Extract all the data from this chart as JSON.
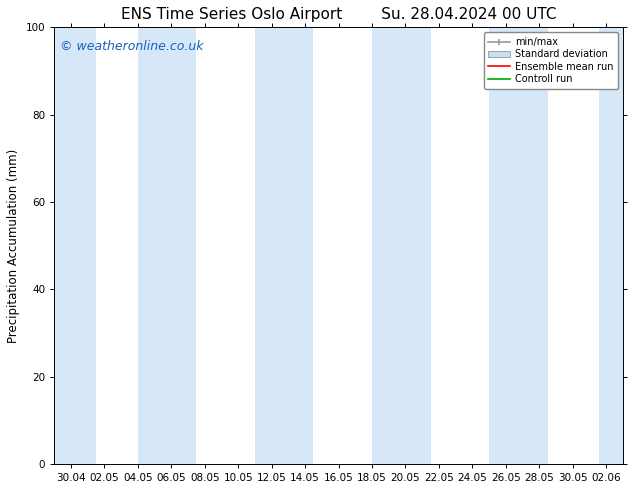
{
  "title_left": "ENS Time Series Oslo Airport",
  "title_right": "Su. 28.04.2024 00 UTC",
  "ylabel": "Precipitation Accumulation (mm)",
  "ylim": [
    0,
    100
  ],
  "yticks": [
    0,
    20,
    40,
    60,
    80,
    100
  ],
  "background_color": "#ffffff",
  "plot_bg_color": "#ffffff",
  "watermark": "© weatheronline.co.uk",
  "watermark_color": "#1a5fbf",
  "band_color": "#d6e8f7",
  "x_tick_labels": [
    "30.04",
    "02.05",
    "04.05",
    "06.05",
    "08.05",
    "10.05",
    "12.05",
    "14.05",
    "16.05",
    "18.05",
    "20.05",
    "22.05",
    "24.05",
    "26.05",
    "28.05",
    "30.05",
    "02.06"
  ],
  "legend_labels": [
    "min/max",
    "Standard deviation",
    "Ensemble mean run",
    "Controll run"
  ],
  "legend_colors": [
    "#999999",
    "#c8dff0",
    "#ff0000",
    "#00aa00"
  ],
  "title_fontsize": 11,
  "tick_fontsize": 7.5,
  "ylabel_fontsize": 8.5,
  "watermark_fontsize": 9
}
